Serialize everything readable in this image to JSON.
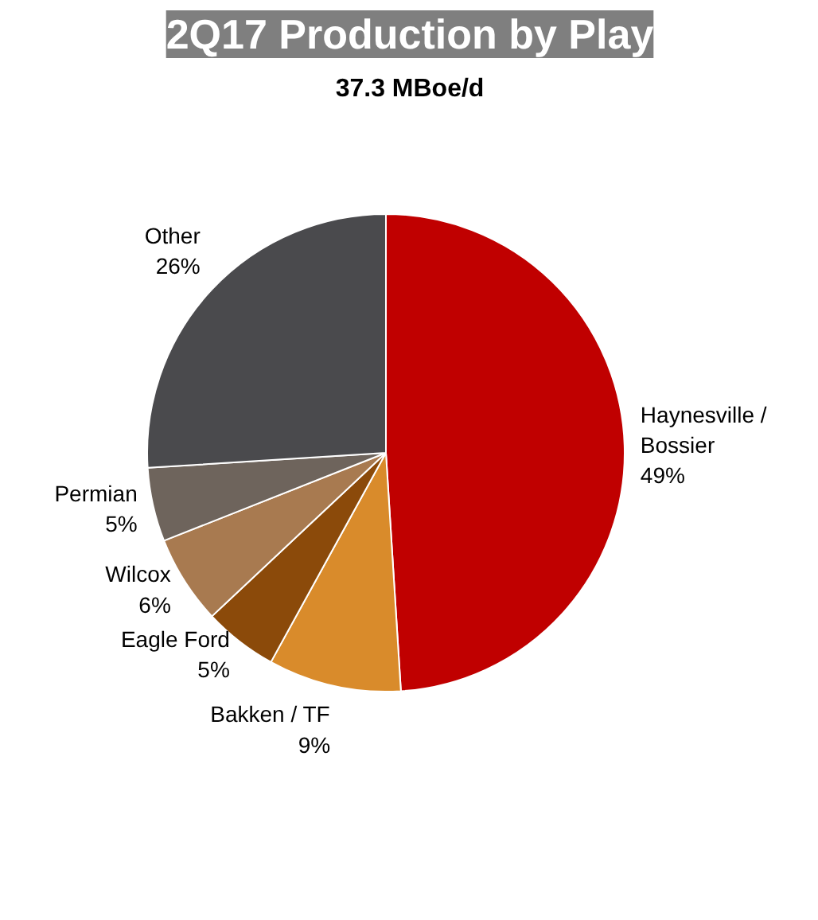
{
  "chart_data": {
    "type": "pie",
    "title": "2Q17 Production by Play",
    "subtitle": "37.3 MBoe/d",
    "categories": [
      "Haynesville / Bossier",
      "Bakken / TF",
      "Eagle Ford",
      "Wilcox",
      "Permian",
      "Other"
    ],
    "values": [
      49,
      9,
      5,
      6,
      5,
      26
    ],
    "colors": [
      "#c00000",
      "#d98b2b",
      "#8b4a0a",
      "#a87a50",
      "#6e645c",
      "#4a4a4d"
    ],
    "value_labels": [
      "49%",
      "9%",
      "5%",
      "6%",
      "5%",
      "26%"
    ]
  }
}
